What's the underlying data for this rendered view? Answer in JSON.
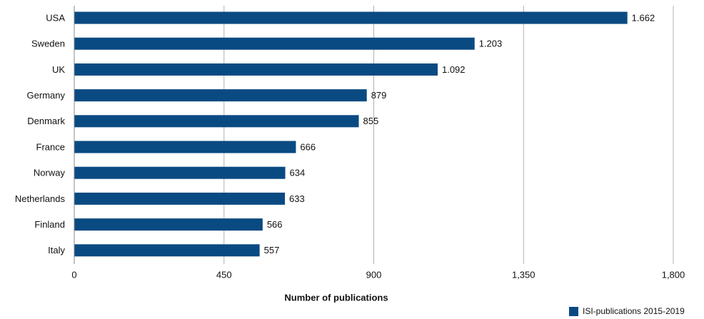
{
  "chart_data": {
    "type": "hbar",
    "categories": [
      "USA",
      "Sweden",
      "UK",
      "Germany",
      "Denmark",
      "France",
      "Norway",
      "Netherlands",
      "Finland",
      "Italy"
    ],
    "series": [
      {
        "name": "ISI-publications 2015-2019",
        "color": "#0a4a82",
        "values": [
          1662,
          1203,
          1092,
          879,
          855,
          666,
          634,
          633,
          566,
          557
        ],
        "value_labels": [
          "1.662",
          "1.203",
          "1.092",
          "879",
          "855",
          "666",
          "634",
          "633",
          "566",
          "557"
        ]
      }
    ],
    "xlabel": "Number of publications",
    "xlim": [
      0,
      1800
    ],
    "xticks": [
      0,
      450,
      900,
      {
        "value": 1350,
        "label": "1,350"
      },
      {
        "value": 1800,
        "label": "1,800"
      }
    ],
    "grid": true,
    "legend": "bottom-right"
  }
}
